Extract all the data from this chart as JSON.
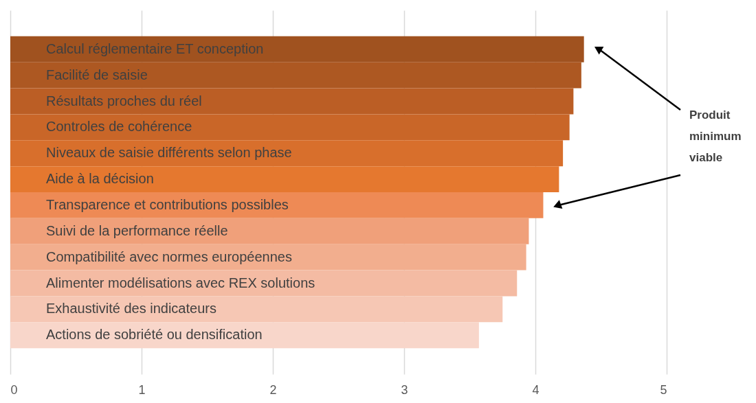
{
  "chart_data": {
    "type": "bar",
    "orientation": "horizontal",
    "categories": [
      "Calcul réglementaire ET conception",
      "Facilité de saisie",
      "Résultats proches du réel",
      "Controles de cohérence",
      "Niveaux de saisie différents selon phase",
      "Aide à la décision",
      "Transparence et contributions possibles",
      "Suivi de la performance réelle",
      "Compatibilité avec normes européennes",
      "Alimenter modélisations avec REX solutions",
      "Exhaustivité des indicateurs",
      "Actions de sobriété ou densification"
    ],
    "values": [
      4.37,
      4.35,
      4.29,
      4.26,
      4.21,
      4.18,
      4.06,
      3.95,
      3.93,
      3.86,
      3.75,
      3.57
    ],
    "colors": [
      "#a0521f",
      "#ad5822",
      "#bb5e25",
      "#c96628",
      "#d86f2c",
      "#e5782f",
      "#ee8a55",
      "#f0a07a",
      "#f2ae8e",
      "#f4bba3",
      "#f6c7b4",
      "#f8d6ca"
    ],
    "xlim": [
      0,
      5
    ],
    "xticks": [
      0,
      1,
      2,
      3,
      4,
      5
    ],
    "grid": "x",
    "legend": false,
    "annotations": [
      "Produit minimum viable"
    ]
  }
}
